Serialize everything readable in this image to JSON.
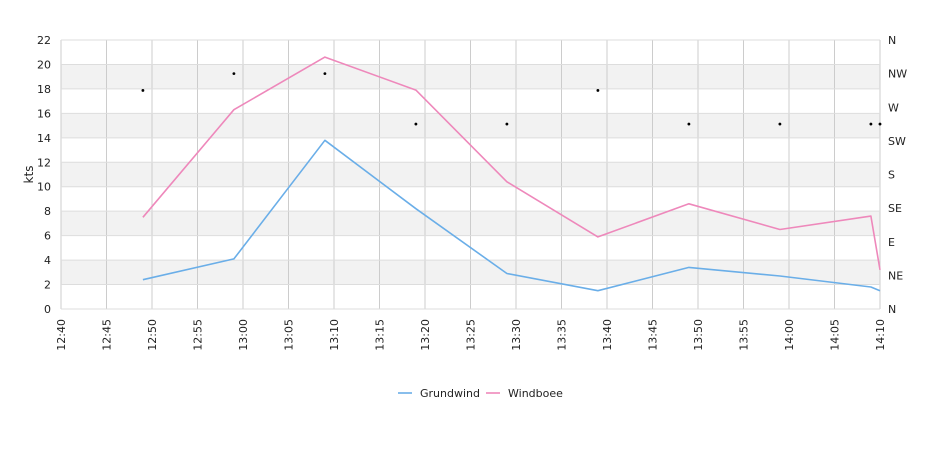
{
  "chart_data": {
    "type": "line",
    "xlabel": "",
    "ylabel": "kts",
    "x_ticks": [
      "12:40",
      "12:45",
      "12:50",
      "12:55",
      "13:00",
      "13:05",
      "13:10",
      "13:15",
      "13:20",
      "13:25",
      "13:30",
      "13:35",
      "13:40",
      "13:45",
      "13:50",
      "13:55",
      "14:00",
      "14:05",
      "14:10"
    ],
    "xlim_minutes": [
      0,
      90
    ],
    "ylim": [
      0,
      22
    ],
    "y_ticks": [
      0,
      2,
      4,
      6,
      8,
      10,
      12,
      14,
      16,
      18,
      20,
      22
    ],
    "y2_ticks": [
      "N",
      "NE",
      "E",
      "SE",
      "S",
      "SW",
      "W",
      "NW",
      "N"
    ],
    "y2lim_degrees": [
      0,
      360
    ],
    "grid": true,
    "legend_position": "bottom",
    "series": [
      {
        "name": "Grundwind",
        "color": "#6aaee8",
        "points": [
          {
            "t": "12:49",
            "v": 2.4
          },
          {
            "t": "12:59",
            "v": 4.1
          },
          {
            "t": "13:09",
            "v": 13.8
          },
          {
            "t": "13:19",
            "v": 8.2
          },
          {
            "t": "13:29",
            "v": 2.9
          },
          {
            "t": "13:39",
            "v": 1.5
          },
          {
            "t": "13:49",
            "v": 3.4
          },
          {
            "t": "13:59",
            "v": 2.7
          },
          {
            "t": "14:09",
            "v": 1.8
          },
          {
            "t": "14:10",
            "v": 1.5
          }
        ]
      },
      {
        "name": "Windboee",
        "color": "#ee88bb",
        "points": [
          {
            "t": "12:49",
            "v": 7.5
          },
          {
            "t": "12:59",
            "v": 16.3
          },
          {
            "t": "13:09",
            "v": 20.6
          },
          {
            "t": "13:19",
            "v": 17.9
          },
          {
            "t": "13:29",
            "v": 10.4
          },
          {
            "t": "13:39",
            "v": 5.9
          },
          {
            "t": "13:49",
            "v": 8.6
          },
          {
            "t": "13:59",
            "v": 6.5
          },
          {
            "t": "14:09",
            "v": 7.6
          },
          {
            "t": "14:10",
            "v": 3.2
          }
        ]
      }
    ],
    "direction_points": [
      {
        "t": "12:49",
        "dir_deg": 292.5
      },
      {
        "t": "12:59",
        "dir_deg": 315
      },
      {
        "t": "13:09",
        "dir_deg": 315
      },
      {
        "t": "13:19",
        "dir_deg": 247.5
      },
      {
        "t": "13:29",
        "dir_deg": 247.5
      },
      {
        "t": "13:39",
        "dir_deg": 292.5
      },
      {
        "t": "13:49",
        "dir_deg": 247.5
      },
      {
        "t": "13:59",
        "dir_deg": 247.5
      },
      {
        "t": "14:09",
        "dir_deg": 247.5
      },
      {
        "t": "14:10",
        "dir_deg": 247.5
      }
    ]
  }
}
